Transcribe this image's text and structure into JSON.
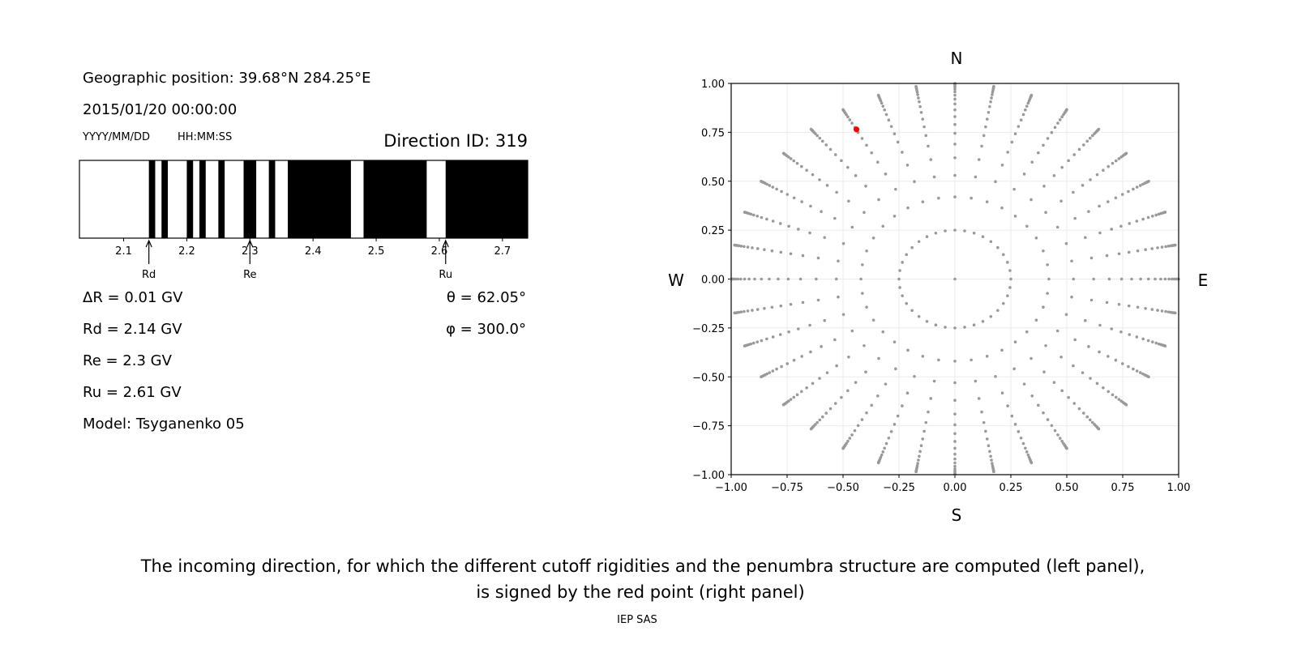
{
  "info": {
    "geo_position": "Geographic position: 39.68°N 284.25°E",
    "datetime": "2015/01/20 00:00:00",
    "date_format": "YYYY/MM/DD",
    "time_format": "HH:MM:SS",
    "direction_id": "Direction ID: 319",
    "delta_r": "ΔR = 0.01 GV",
    "rd": "Rd = 2.14 GV",
    "re": "Re = 2.3 GV",
    "ru": "Ru = 2.61 GV",
    "model": "Model: Tsyganenko 05",
    "theta": "θ = 62.05°",
    "phi": "φ = 300.0°"
  },
  "caption": {
    "line1": "The incoming direction, for which the different cutoff rigidities and the penumbra structure are computed (left panel),",
    "line2": "is signed by the red point (right panel)",
    "credit": "IEP SAS"
  },
  "chart_data": [
    {
      "type": "bar",
      "description_kind": "penumbra",
      "xlim": [
        2.03,
        2.74
      ],
      "xticks": [
        2.1,
        2.2,
        2.3,
        2.4,
        2.5,
        2.6,
        2.7
      ],
      "xtick_labels": [
        "2.1",
        "2.2",
        "2.3",
        "2.4",
        "2.5",
        "2.6",
        "2.7"
      ],
      "forbidden_bands": [
        [
          2.14,
          2.15
        ],
        [
          2.16,
          2.17
        ],
        [
          2.2,
          2.21
        ],
        [
          2.22,
          2.23
        ],
        [
          2.25,
          2.26
        ],
        [
          2.29,
          2.31
        ],
        [
          2.33,
          2.34
        ],
        [
          2.36,
          2.46
        ],
        [
          2.48,
          2.58
        ],
        [
          2.61,
          2.74
        ]
      ],
      "colors": {
        "forbidden": "#000000",
        "allowed": "#ffffff"
      },
      "annotations": [
        {
          "label": "Rd",
          "x": 2.14
        },
        {
          "label": "Re",
          "x": 2.3
        },
        {
          "label": "Ru",
          "x": 2.61
        }
      ]
    },
    {
      "type": "scatter",
      "xlim": [
        -1.0,
        1.0
      ],
      "ylim": [
        -1.0,
        1.0
      ],
      "grid": true,
      "xticks": [
        "−1.00",
        "−0.75",
        "−0.50",
        "−0.25",
        "0.00",
        "0.25",
        "0.50",
        "0.75",
        "1.00"
      ],
      "yticks": [
        "−1.00",
        "−0.75",
        "−0.50",
        "−0.25",
        "0.00",
        "0.25",
        "0.50",
        "0.75",
        "1.00"
      ],
      "compass": {
        "north": "N",
        "south": "S",
        "east": "E",
        "west": "W"
      },
      "grid_points": {
        "color": "#999999",
        "center": [
          0,
          0
        ],
        "spoke_angles_step_deg": 10,
        "radii": [
          0.25,
          0.42,
          0.53,
          0.62,
          0.69,
          0.745,
          0.79,
          0.83,
          0.865,
          0.895,
          0.92,
          0.94,
          0.957,
          0.97,
          0.98,
          0.988,
          0.994,
          0.998,
          1.0
        ]
      },
      "selected_point": {
        "x": -0.44,
        "y": 0.765,
        "color": "#ff0000"
      }
    }
  ]
}
